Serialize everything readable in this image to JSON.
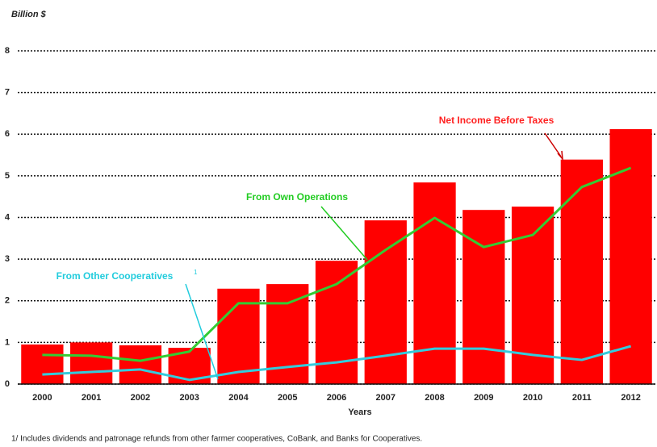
{
  "chart_data": {
    "type": "bar",
    "y_label": "Billion $",
    "x_label": "Years",
    "footnote": "1/  Includes dividends and patronage refunds from other farmer cooperatives, CoBank, and Banks for Cooperatives.",
    "note_marker": "1",
    "categories": [
      "2000",
      "2001",
      "2002",
      "2003",
      "2004",
      "2005",
      "2006",
      "2007",
      "2008",
      "2009",
      "2010",
      "2011",
      "2012"
    ],
    "series": [
      {
        "name": "Net Income Before Taxes",
        "type": "bar",
        "color": "#ff0000",
        "values": [
          0.95,
          1.0,
          0.93,
          0.87,
          2.29,
          2.4,
          2.96,
          3.93,
          4.84,
          4.18,
          4.26,
          5.39,
          6.12
        ]
      },
      {
        "name": "From Own Operations",
        "type": "line",
        "color": "#33cc33",
        "values": [
          0.7,
          0.68,
          0.56,
          0.78,
          1.94,
          1.94,
          2.4,
          3.22,
          3.99,
          3.29,
          3.58,
          4.73,
          5.19
        ]
      },
      {
        "name": "From Other Cooperatives",
        "type": "line",
        "color": "#33ccdd",
        "values": [
          0.23,
          0.29,
          0.35,
          0.1,
          0.29,
          0.41,
          0.52,
          0.68,
          0.85,
          0.85,
          0.7,
          0.58,
          0.91
        ]
      }
    ],
    "ylim": [
      0,
      8
    ],
    "yticks": [
      0,
      1,
      2,
      3,
      4,
      5,
      6,
      7,
      8
    ],
    "grid": true
  }
}
